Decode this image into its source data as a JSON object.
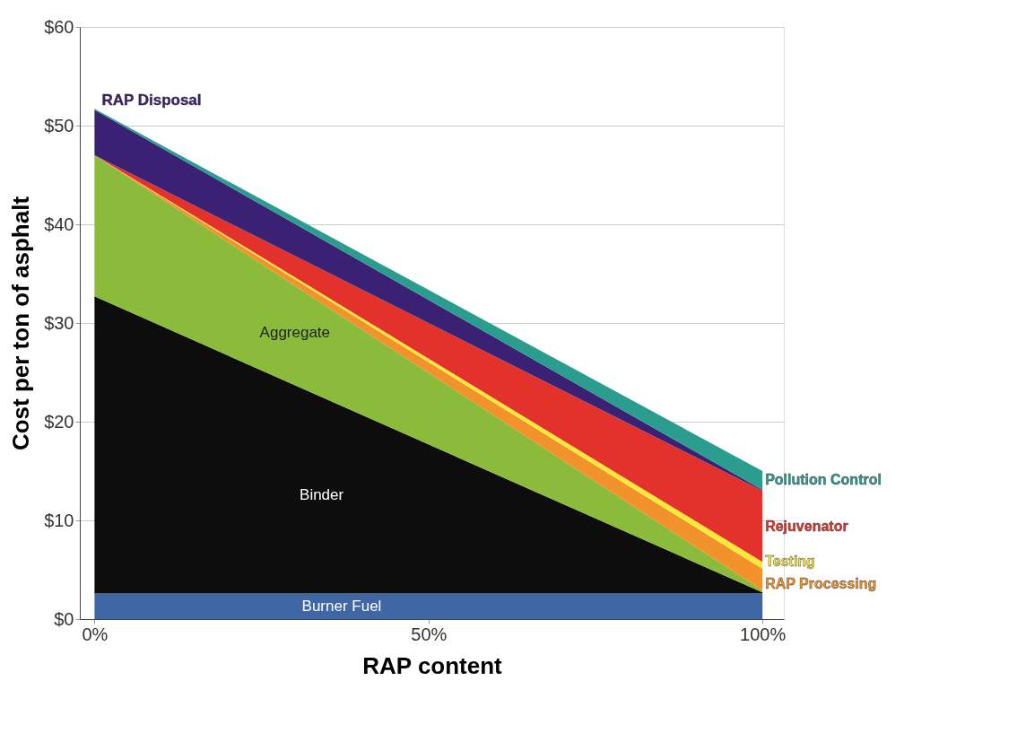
{
  "chart_data": {
    "type": "area",
    "stacked": true,
    "xlabel": "RAP content",
    "ylabel": "Cost per ton of asphalt",
    "x": [
      0,
      100
    ],
    "xlim": [
      -2.2,
      103.2
    ],
    "xticks": [
      {
        "value": 0,
        "label": "0%"
      },
      {
        "value": 50,
        "label": "50%"
      },
      {
        "value": 100,
        "label": "100%"
      }
    ],
    "ylim": [
      0,
      60
    ],
    "yticks": [
      {
        "value": 0,
        "label": "$0"
      },
      {
        "value": 10,
        "label": "$10"
      },
      {
        "value": 20,
        "label": "$20"
      },
      {
        "value": 30,
        "label": "$30"
      },
      {
        "value": 40,
        "label": "$40"
      },
      {
        "value": 50,
        "label": "$50"
      },
      {
        "value": 60,
        "label": "$60"
      }
    ],
    "grid": "y",
    "legend": false,
    "series": [
      {
        "name": "Burner Fuel",
        "color": "#3f67a6",
        "values": [
          2.6,
          2.6
        ]
      },
      {
        "name": "Binder",
        "color": "#0d0d0d",
        "values": [
          30.1,
          0.1
        ]
      },
      {
        "name": "Aggregate",
        "color": "#8bbb3a",
        "values": [
          14.3,
          0.2
        ]
      },
      {
        "name": "RAP Processing",
        "color": "#f2922a",
        "values": [
          0,
          2.2
        ]
      },
      {
        "name": "Testing",
        "color": "#f7e93a",
        "values": [
          0,
          0.7
        ]
      },
      {
        "name": "Rejuvenator",
        "color": "#e3322b",
        "values": [
          0,
          7.2
        ]
      },
      {
        "name": "RAP Disposal",
        "color": "#3b2174",
        "values": [
          4.6,
          0.1
        ]
      },
      {
        "name": "Pollution Control",
        "color": "#2a9d8f",
        "values": [
          0.1,
          1.9
        ]
      }
    ]
  }
}
